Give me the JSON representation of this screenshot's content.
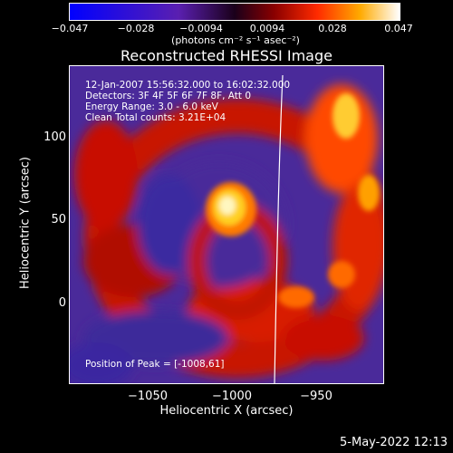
{
  "colorbar": {
    "ticks": [
      "−0.047",
      "−0.028",
      "−0.0094",
      "0.0094",
      "0.028",
      "0.047"
    ],
    "units": "(photons cm⁻² s⁻¹ asec⁻²)"
  },
  "title": "Reconstructed RHESSI Image",
  "info": {
    "time_range": "12-Jan-2007 15:56:32.000 to 16:02:32.000",
    "detectors": "Detectors: 3F 4F 5F 6F 7F 8F, Att 0",
    "energy": "Energy Range: 3.0 - 6.0 keV",
    "clean": "Clean     Total counts: 3.21E+04",
    "peak": "Position of Peak = [-1008,61]"
  },
  "axes": {
    "xlabel": "Heliocentric X (arcsec)",
    "ylabel": "Heliocentric Y (arcsec)",
    "xticks": [
      "−1050",
      "−1000",
      "−950"
    ],
    "yticks": [
      "100",
      "50",
      "0"
    ]
  },
  "timestamp": "5-May-2022 12:13"
}
